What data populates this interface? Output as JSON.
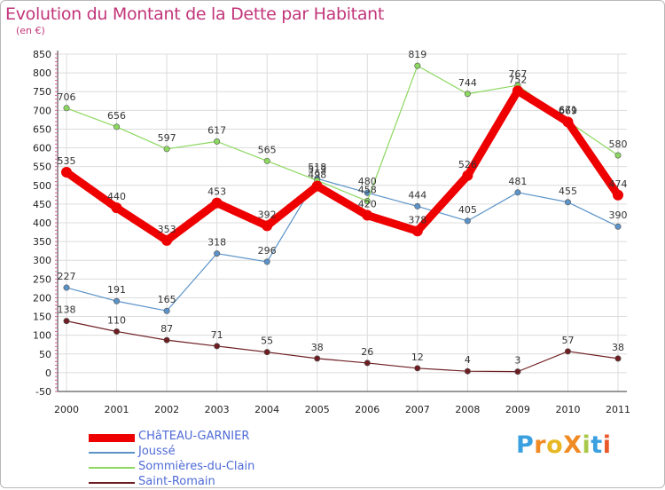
{
  "page": {
    "title": "Evolution du Montant de la Dette par Habitant",
    "unit": "(en €)",
    "logo": "ProXiti",
    "logo_colors": [
      "#3aa0e0",
      "#f08a24",
      "#e8b824",
      "#f08a24",
      "#a9c84a",
      "#3aa0e0",
      "#e85a2a"
    ]
  },
  "chart_data": {
    "type": "line",
    "title": "Evolution du Montant de la Dette par Habitant",
    "subtitle": "(en €)",
    "x": [
      "2000",
      "2001",
      "2002",
      "2003",
      "2004",
      "2005",
      "2006",
      "2007",
      "2008",
      "2009",
      "2010",
      "2011"
    ],
    "ylim": [
      -50,
      850
    ],
    "yticks": [
      -50,
      0,
      50,
      100,
      150,
      200,
      250,
      300,
      350,
      400,
      450,
      500,
      550,
      600,
      650,
      700,
      750,
      800,
      850
    ],
    "grid": true,
    "legend_position": "bottom-left",
    "series": [
      {
        "name": "CHâTEAU-GARNIER",
        "color": "#ee0000",
        "values": [
          535,
          440,
          353,
          453,
          392,
          498,
          420,
          378,
          526,
          752,
          669,
          474
        ],
        "labels": [
          "535",
          "440",
          "353",
          "453",
          "392",
          "498",
          "420",
          "378",
          "526",
          "752",
          "669",
          "474"
        ]
      },
      {
        "name": "Joussé",
        "color": "#5b93c8",
        "values": [
          227,
          191,
          165,
          318,
          296,
          518,
          480,
          444,
          405,
          481,
          455,
          390
        ],
        "labels": [
          "227",
          "191",
          "165",
          "318",
          "296",
          "518",
          "480",
          "444",
          "405",
          "481",
          "455",
          "390"
        ]
      },
      {
        "name": "Sommières-du-Clain",
        "color": "#8cd860",
        "values": [
          706,
          656,
          597,
          617,
          565,
          513,
          458,
          819,
          744,
          767,
          671,
          580
        ],
        "labels": [
          "706",
          "656",
          "597",
          "617",
          "565",
          "513",
          "458",
          "819",
          "744",
          "767",
          "671",
          "580"
        ]
      },
      {
        "name": "Saint-Romain",
        "color": "#6e1e22",
        "values": [
          138,
          110,
          87,
          71,
          55,
          38,
          26,
          12,
          4,
          3,
          57,
          38
        ],
        "labels": [
          "138",
          "110",
          "87",
          "71",
          "55",
          "38",
          "26",
          "12",
          "4",
          "3",
          "57",
          "38"
        ]
      }
    ]
  }
}
